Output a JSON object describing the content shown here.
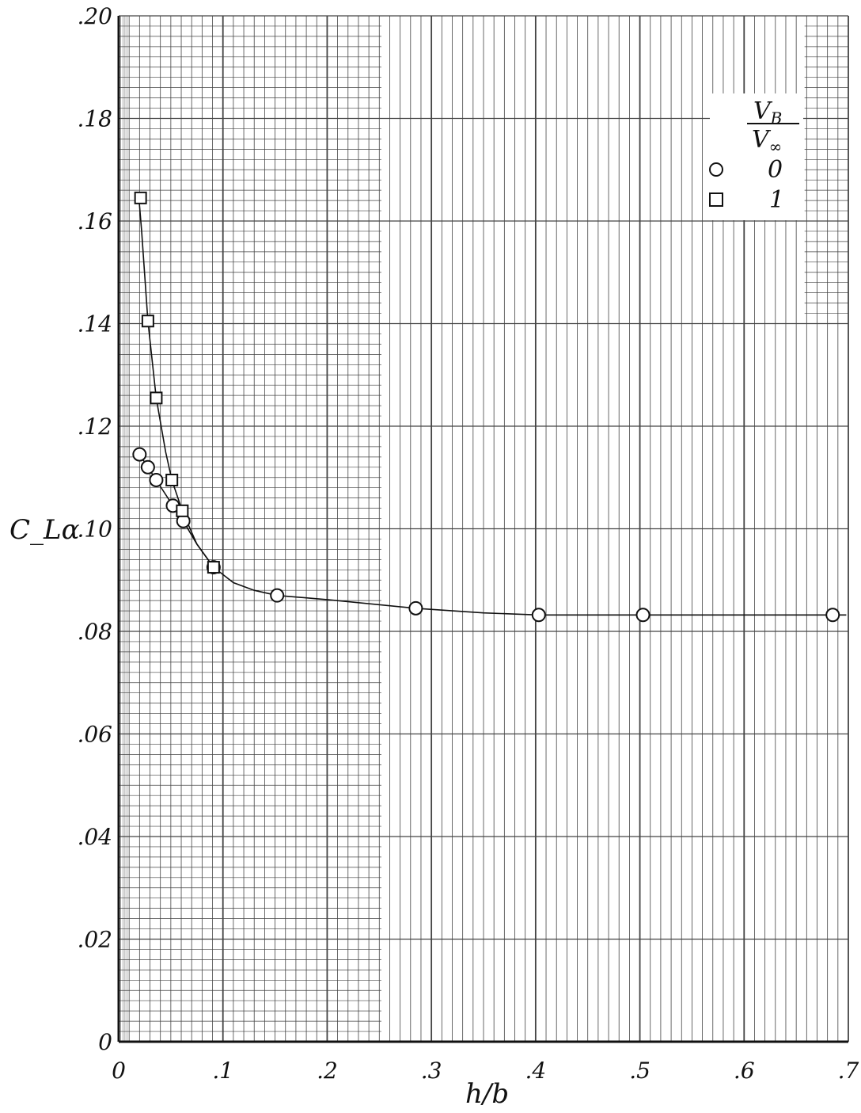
{
  "chart_data": {
    "type": "scatter",
    "title": "",
    "xlabel": "h/b",
    "ylabel": "C_Lα",
    "xlim": [
      0,
      0.7
    ],
    "ylim": [
      0,
      0.2
    ],
    "grid": true,
    "legend_position": "top-right",
    "x_tick_labels": [
      "0",
      ".1",
      ".2",
      ".3",
      ".4",
      ".5",
      ".6",
      ".7"
    ],
    "y_tick_labels": [
      "0",
      ".02",
      ".04",
      ".06",
      ".08",
      ".10",
      ".12",
      ".14",
      ".16",
      ".18",
      ".20"
    ],
    "legend": {
      "title_numerator": "V",
      "title_numerator_sub": "B",
      "title_denominator": "V",
      "title_denominator_sub": "∞",
      "entries": [
        {
          "marker": "circle",
          "label": "0"
        },
        {
          "marker": "square",
          "label": "1"
        }
      ]
    },
    "series": [
      {
        "name": "0",
        "marker": "circle",
        "points": [
          {
            "x": 0.02,
            "y": 0.1145
          },
          {
            "x": 0.028,
            "y": 0.112
          },
          {
            "x": 0.036,
            "y": 0.1095
          },
          {
            "x": 0.052,
            "y": 0.1045
          },
          {
            "x": 0.062,
            "y": 0.1015
          },
          {
            "x": 0.091,
            "y": 0.0925
          },
          {
            "x": 0.152,
            "y": 0.087
          },
          {
            "x": 0.285,
            "y": 0.0845
          },
          {
            "x": 0.403,
            "y": 0.0832
          },
          {
            "x": 0.503,
            "y": 0.0832
          },
          {
            "x": 0.685,
            "y": 0.0832
          }
        ]
      },
      {
        "name": "1",
        "marker": "square",
        "points": [
          {
            "x": 0.021,
            "y": 0.1645
          },
          {
            "x": 0.028,
            "y": 0.1405
          },
          {
            "x": 0.036,
            "y": 0.1255
          },
          {
            "x": 0.051,
            "y": 0.1095
          },
          {
            "x": 0.061,
            "y": 0.1035
          },
          {
            "x": 0.091,
            "y": 0.0925
          }
        ]
      }
    ],
    "curve": [
      {
        "x": 0.019,
        "y": 0.1655
      },
      {
        "x": 0.022,
        "y": 0.158
      },
      {
        "x": 0.028,
        "y": 0.1405
      },
      {
        "x": 0.036,
        "y": 0.1255
      },
      {
        "x": 0.045,
        "y": 0.115
      },
      {
        "x": 0.051,
        "y": 0.1095
      },
      {
        "x": 0.061,
        "y": 0.1035
      },
      {
        "x": 0.075,
        "y": 0.097
      },
      {
        "x": 0.091,
        "y": 0.0925
      },
      {
        "x": 0.11,
        "y": 0.0895
      },
      {
        "x": 0.13,
        "y": 0.088
      },
      {
        "x": 0.152,
        "y": 0.087
      },
      {
        "x": 0.2,
        "y": 0.0862
      },
      {
        "x": 0.285,
        "y": 0.0845
      },
      {
        "x": 0.35,
        "y": 0.0836
      },
      {
        "x": 0.403,
        "y": 0.0832
      },
      {
        "x": 0.503,
        "y": 0.0832
      },
      {
        "x": 0.6,
        "y": 0.0832
      },
      {
        "x": 0.685,
        "y": 0.0832
      },
      {
        "x": 0.698,
        "y": 0.0832
      }
    ],
    "curve_low": [
      {
        "x": 0.018,
        "y": 0.1155
      },
      {
        "x": 0.02,
        "y": 0.1145
      },
      {
        "x": 0.028,
        "y": 0.112
      },
      {
        "x": 0.036,
        "y": 0.1095
      },
      {
        "x": 0.052,
        "y": 0.1045
      },
      {
        "x": 0.062,
        "y": 0.1015
      },
      {
        "x": 0.075,
        "y": 0.097
      },
      {
        "x": 0.091,
        "y": 0.0925
      }
    ]
  }
}
